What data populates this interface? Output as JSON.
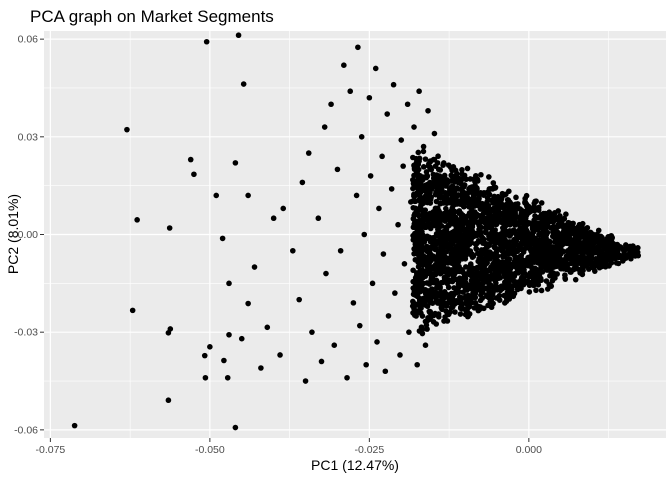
{
  "chart_data": {
    "type": "scatter",
    "title": "PCA graph on Market Segments",
    "xlabel": "PC1 (12.47%)",
    "ylabel": "PC2 (8.01%)",
    "xlim": [
      -0.076,
      0.0215
    ],
    "ylim": [
      -0.0625,
      0.0625
    ],
    "x_ticks": [
      -0.075,
      -0.05,
      -0.025,
      0.0
    ],
    "x_tick_labels": [
      "-0.075",
      "-0.050",
      "-0.025",
      "0.000"
    ],
    "y_ticks": [
      -0.06,
      -0.03,
      0.0,
      0.03,
      0.06
    ],
    "y_tick_labels": [
      "-0.06",
      "-0.03",
      "0.00",
      "0.03",
      "0.06"
    ],
    "grid": true,
    "legend": "none",
    "colors": {
      "panel": "#EBEBEB",
      "grid": "#FFFFFF",
      "point": "#000000"
    },
    "points": [
      [
        -0.0712,
        -0.0587
      ],
      [
        -0.063,
        0.0322
      ],
      [
        -0.0614,
        0.0045
      ],
      [
        -0.0621,
        -0.0233
      ],
      [
        -0.0563,
        0.002
      ],
      [
        -0.0562,
        -0.029
      ],
      [
        -0.0565,
        -0.0302
      ],
      [
        -0.0565,
        -0.0509
      ],
      [
        -0.053,
        0.023
      ],
      [
        -0.0525,
        0.0185
      ],
      [
        -0.0505,
        0.0592
      ],
      [
        -0.0455,
        0.0612
      ],
      [
        -0.0447,
        0.0462
      ],
      [
        -0.05,
        -0.0345
      ],
      [
        -0.0508,
        -0.0372
      ],
      [
        -0.0507,
        -0.044
      ],
      [
        -0.047,
        -0.0308
      ],
      [
        -0.0472,
        -0.044
      ],
      [
        -0.0478,
        -0.0387
      ],
      [
        -0.046,
        -0.0593
      ],
      [
        -0.044,
        -0.0212
      ],
      [
        -0.045,
        -0.032
      ],
      [
        -0.047,
        -0.015
      ],
      [
        -0.048,
        -0.0012
      ],
      [
        -0.049,
        0.012
      ],
      [
        -0.046,
        0.022
      ],
      [
        -0.044,
        0.012
      ],
      [
        -0.043,
        -0.01
      ],
      [
        -0.042,
        -0.041
      ],
      [
        -0.041,
        -0.0285
      ],
      [
        -0.04,
        0.005
      ],
      [
        -0.039,
        -0.037
      ],
      [
        -0.0385,
        0.008
      ],
      [
        -0.037,
        -0.005
      ],
      [
        -0.036,
        -0.02
      ],
      [
        -0.0355,
        0.016
      ],
      [
        -0.035,
        -0.045
      ],
      [
        -0.0345,
        0.025
      ],
      [
        -0.034,
        -0.03
      ],
      [
        -0.033,
        0.005
      ],
      [
        -0.0325,
        -0.039
      ],
      [
        -0.032,
        0.033
      ],
      [
        -0.0318,
        -0.012
      ],
      [
        -0.031,
        0.04
      ],
      [
        -0.0305,
        -0.034
      ],
      [
        -0.03,
        0.02
      ],
      [
        -0.0295,
        -0.005
      ],
      [
        -0.029,
        0.052
      ],
      [
        -0.0285,
        -0.044
      ],
      [
        -0.028,
        0.044
      ],
      [
        -0.0275,
        -0.021
      ],
      [
        -0.027,
        0.012
      ],
      [
        -0.0268,
        0.0575
      ],
      [
        -0.0265,
        -0.028
      ],
      [
        -0.0262,
        0.03
      ],
      [
        -0.0258,
        0.0
      ],
      [
        -0.0255,
        -0.04
      ],
      [
        -0.025,
        0.042
      ],
      [
        -0.0248,
        0.018
      ],
      [
        -0.0245,
        -0.015
      ],
      [
        -0.024,
        0.051
      ],
      [
        -0.0238,
        -0.033
      ],
      [
        -0.0235,
        0.008
      ],
      [
        -0.023,
        0.024
      ],
      [
        -0.0228,
        -0.006
      ],
      [
        -0.0225,
        -0.042
      ],
      [
        -0.0222,
        0.037
      ],
      [
        -0.022,
        -0.025
      ],
      [
        -0.0215,
        0.014
      ],
      [
        -0.0212,
        0.046
      ],
      [
        -0.021,
        -0.018
      ],
      [
        -0.0205,
        0.003
      ],
      [
        -0.0202,
        -0.037
      ],
      [
        -0.02,
        0.029
      ],
      [
        -0.0197,
        0.021
      ],
      [
        -0.0195,
        -0.009
      ],
      [
        -0.019,
        0.04
      ],
      [
        -0.0188,
        -0.03
      ],
      [
        -0.0185,
        0.01
      ],
      [
        -0.0182,
        -0.022
      ],
      [
        -0.018,
        0.033
      ],
      [
        -0.0178,
        -0.003
      ],
      [
        -0.0175,
        -0.04
      ],
      [
        -0.0172,
        0.044
      ],
      [
        -0.017,
        0.018
      ],
      [
        -0.0168,
        -0.015
      ],
      [
        -0.0165,
        0.027
      ],
      [
        -0.0162,
        -0.034
      ],
      [
        -0.016,
        0.006
      ],
      [
        -0.0158,
        0.038
      ],
      [
        -0.0155,
        -0.026
      ],
      [
        -0.0152,
        0.014
      ],
      [
        -0.015,
        -0.007
      ],
      [
        -0.0148,
        0.031
      ],
      [
        -0.0145,
        -0.02
      ],
      [
        -0.0143,
        0.022
      ]
    ]
  }
}
